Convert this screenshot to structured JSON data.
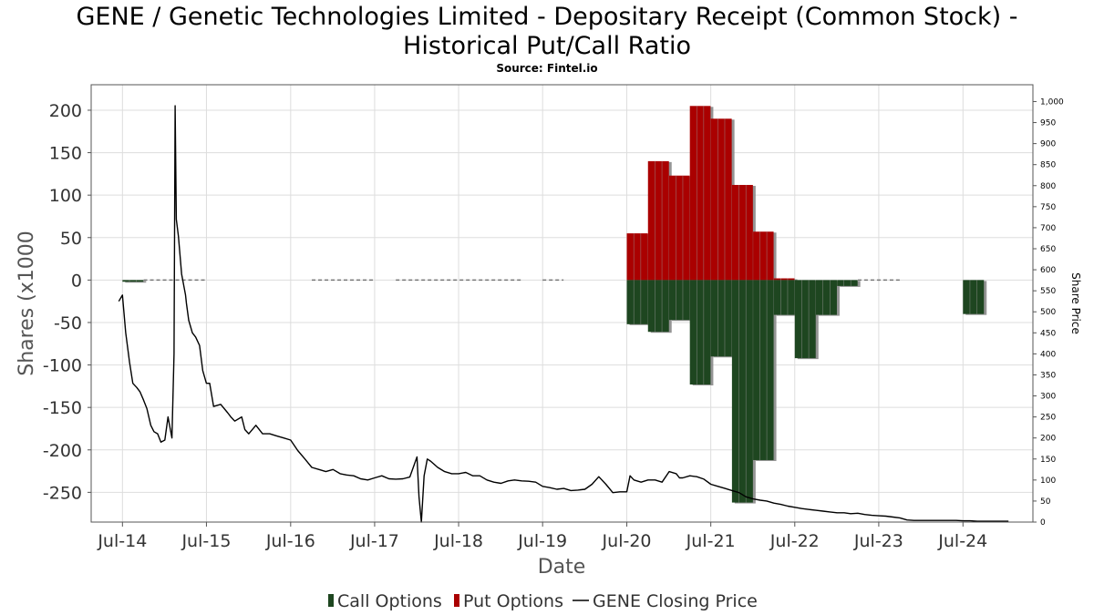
{
  "chart": {
    "title_line1": "GENE / Genetic Technologies Limited - Depositary Receipt (Common Stock) -",
    "title_line2": "Historical Put/Call Ratio",
    "source": "Source: Fintel.io",
    "xlabel": "Date",
    "ylabel_left": "Shares (x1000",
    "ylabel_right": "Share Price"
  },
  "legend": {
    "call": "Call Options",
    "put": "Put Options",
    "price": "GENE Closing Price"
  },
  "colors": {
    "call": "#1e4620",
    "put": "#aa0000",
    "price": "#000000",
    "zero_dash": "#777777",
    "shadow": "#888888"
  },
  "chart_data": {
    "type": "bar",
    "title": "GENE / Genetic Technologies Limited - Depositary Receipt (Common Stock) - Historical Put/Call Ratio",
    "xlabel": "Date",
    "ylabel": "Shares (x1000",
    "y2label": "Share Price",
    "ylim": [
      -285,
      230
    ],
    "y2lim": [
      0,
      1040
    ],
    "y_ticks": [
      -250,
      -200,
      -150,
      -100,
      -50,
      0,
      50,
      100,
      150,
      200
    ],
    "y2_ticks": [
      0,
      50,
      100,
      150,
      200,
      250,
      300,
      350,
      400,
      450,
      500,
      550,
      600,
      650,
      700,
      750,
      800,
      850,
      900,
      950,
      1000
    ],
    "y2_tick_labels": [
      "0",
      "50",
      "100",
      "150",
      "200",
      "250",
      "300",
      "350",
      "400",
      "450",
      "500",
      "550",
      "600",
      "650",
      "700",
      "750",
      "800",
      "850",
      "900",
      "950",
      "1,000"
    ],
    "x_ticks": [
      "2014-07-01",
      "2015-07-01",
      "2016-07-01",
      "2017-07-01",
      "2018-07-01",
      "2019-07-01",
      "2020-07-01",
      "2021-07-01",
      "2022-07-01",
      "2023-07-01",
      "2024-07-01"
    ],
    "x_tick_labels": [
      "Jul-14",
      "Jul-15",
      "Jul-16",
      "Jul-17",
      "Jul-18",
      "Jul-19",
      "Jul-20",
      "Jul-21",
      "Jul-22",
      "Jul-23",
      "Jul-24"
    ],
    "xlim": [
      "2014-02-15",
      "2025-05-01"
    ],
    "grid": true,
    "legend_position": "bottom",
    "series": [
      {
        "name": "Call Options",
        "type": "bar",
        "axis": "left",
        "values": [
          {
            "start": "2014-07-01",
            "end": "2014-09-30",
            "value": -2
          },
          {
            "start": "2020-07-01",
            "end": "2020-09-30",
            "value": -52
          },
          {
            "start": "2020-10-01",
            "end": "2020-12-31",
            "value": -61
          },
          {
            "start": "2021-01-01",
            "end": "2021-03-31",
            "value": -47
          },
          {
            "start": "2021-04-01",
            "end": "2021-06-30",
            "value": -123
          },
          {
            "start": "2021-07-01",
            "end": "2021-09-30",
            "value": -90
          },
          {
            "start": "2021-10-01",
            "end": "2021-12-31",
            "value": -262
          },
          {
            "start": "2022-01-01",
            "end": "2022-03-31",
            "value": -212
          },
          {
            "start": "2022-04-01",
            "end": "2022-06-30",
            "value": -41
          },
          {
            "start": "2022-07-01",
            "end": "2022-09-30",
            "value": -92
          },
          {
            "start": "2022-10-01",
            "end": "2022-12-31",
            "value": -41
          },
          {
            "start": "2023-01-01",
            "end": "2023-03-31",
            "value": -7
          },
          {
            "start": "2024-07-01",
            "end": "2024-09-30",
            "value": -40
          }
        ]
      },
      {
        "name": "Put Options",
        "type": "bar",
        "axis": "left",
        "values": [
          {
            "start": "2020-07-01",
            "end": "2020-09-30",
            "value": 55
          },
          {
            "start": "2020-10-01",
            "end": "2020-12-31",
            "value": 140
          },
          {
            "start": "2021-01-01",
            "end": "2021-03-31",
            "value": 123
          },
          {
            "start": "2021-04-01",
            "end": "2021-06-30",
            "value": 205
          },
          {
            "start": "2021-07-01",
            "end": "2021-09-30",
            "value": 190
          },
          {
            "start": "2021-10-01",
            "end": "2021-12-31",
            "value": 112
          },
          {
            "start": "2022-01-01",
            "end": "2022-03-31",
            "value": 57
          },
          {
            "start": "2022-04-01",
            "end": "2022-06-30",
            "value": 2
          }
        ]
      },
      {
        "name": "Zero-position periods",
        "type": "dashed-zero",
        "axis": "left",
        "values": [
          {
            "start": "2014-10-01",
            "end": "2015-06-30",
            "value": 0
          },
          {
            "start": "2016-10-01",
            "end": "2017-06-30",
            "value": 0
          },
          {
            "start": "2017-10-01",
            "end": "2019-03-31",
            "value": 0
          },
          {
            "start": "2019-07-01",
            "end": "2019-09-30",
            "value": 0
          },
          {
            "start": "2023-04-01",
            "end": "2023-09-30",
            "value": 0
          }
        ]
      },
      {
        "name": "GENE Closing Price",
        "type": "line",
        "axis": "right",
        "x": [
          "2014-06-15",
          "2014-07-01",
          "2014-07-15",
          "2014-08-01",
          "2014-08-15",
          "2014-09-01",
          "2014-09-15",
          "2014-10-01",
          "2014-10-15",
          "2014-11-01",
          "2014-11-15",
          "2014-12-01",
          "2014-12-15",
          "2015-01-01",
          "2015-01-15",
          "2015-02-01",
          "2015-02-10",
          "2015-02-15",
          "2015-02-20",
          "2015-03-01",
          "2015-03-15",
          "2015-04-01",
          "2015-04-05",
          "2015-04-15",
          "2015-05-01",
          "2015-05-15",
          "2015-06-01",
          "2015-06-15",
          "2015-07-01",
          "2015-07-15",
          "2015-08-01",
          "2015-09-01",
          "2015-10-01",
          "2015-10-15",
          "2015-11-01",
          "2015-12-01",
          "2015-12-15",
          "2016-01-01",
          "2016-02-01",
          "2016-03-01",
          "2016-04-01",
          "2016-05-01",
          "2016-06-01",
          "2016-07-01",
          "2016-08-01",
          "2016-09-01",
          "2016-10-01",
          "2016-11-01",
          "2016-12-01",
          "2017-01-01",
          "2017-02-01",
          "2017-03-01",
          "2017-04-01",
          "2017-05-01",
          "2017-06-01",
          "2017-07-01",
          "2017-08-01",
          "2017-09-01",
          "2017-10-01",
          "2017-11-01",
          "2017-12-01",
          "2018-01-01",
          "2018-01-10",
          "2018-01-20",
          "2018-02-01",
          "2018-02-15",
          "2018-03-01",
          "2018-04-01",
          "2018-05-01",
          "2018-06-01",
          "2018-07-01",
          "2018-08-01",
          "2018-09-01",
          "2018-10-01",
          "2018-11-01",
          "2018-12-01",
          "2019-01-01",
          "2019-02-01",
          "2019-03-01",
          "2019-04-01",
          "2019-05-01",
          "2019-06-01",
          "2019-07-01",
          "2019-08-01",
          "2019-09-01",
          "2019-10-01",
          "2019-11-01",
          "2019-12-01",
          "2020-01-01",
          "2020-02-01",
          "2020-03-01",
          "2020-04-01",
          "2020-05-01",
          "2020-06-01",
          "2020-07-01",
          "2020-07-15",
          "2020-08-01",
          "2020-09-01",
          "2020-10-01",
          "2020-11-01",
          "2020-12-01",
          "2021-01-01",
          "2021-02-01",
          "2021-02-15",
          "2021-03-01",
          "2021-04-01",
          "2021-05-01",
          "2021-06-01",
          "2021-07-01",
          "2021-08-01",
          "2021-09-01",
          "2021-10-01",
          "2021-11-01",
          "2021-12-01",
          "2022-01-01",
          "2022-02-01",
          "2022-03-01",
          "2022-04-01",
          "2022-05-01",
          "2022-06-01",
          "2022-07-01",
          "2022-08-01",
          "2022-09-01",
          "2022-10-01",
          "2022-11-01",
          "2022-12-01",
          "2023-01-01",
          "2023-02-01",
          "2023-03-01",
          "2023-04-01",
          "2023-05-01",
          "2023-06-01",
          "2023-07-01",
          "2023-08-01",
          "2023-09-01",
          "2023-10-01",
          "2023-11-01",
          "2023-12-01",
          "2024-01-01",
          "2024-02-01",
          "2024-03-01",
          "2024-04-01",
          "2024-05-01",
          "2024-06-01",
          "2024-07-01",
          "2024-08-01",
          "2024-09-01",
          "2024-10-01",
          "2024-11-01",
          "2024-12-01",
          "2025-01-15"
        ],
        "y": [
          525,
          540,
          450,
          380,
          330,
          320,
          310,
          290,
          270,
          230,
          215,
          210,
          190,
          195,
          250,
          200,
          400,
          990,
          720,
          680,
          590,
          540,
          520,
          480,
          450,
          440,
          420,
          360,
          330,
          330,
          275,
          280,
          260,
          250,
          240,
          250,
          220,
          210,
          230,
          210,
          210,
          205,
          200,
          195,
          170,
          150,
          130,
          125,
          120,
          125,
          115,
          112,
          110,
          103,
          100,
          105,
          110,
          103,
          102,
          103,
          107,
          155,
          60,
          0,
          110,
          150,
          145,
          130,
          120,
          115,
          115,
          118,
          110,
          110,
          100,
          95,
          92,
          98,
          100,
          98,
          97,
          95,
          85,
          82,
          78,
          80,
          75,
          76,
          78,
          90,
          108,
          90,
          70,
          72,
          72,
          110,
          100,
          95,
          100,
          100,
          95,
          120,
          115,
          105,
          105,
          110,
          108,
          102,
          90,
          85,
          80,
          75,
          70,
          60,
          55,
          52,
          50,
          45,
          42,
          38,
          35,
          32,
          30,
          28,
          26,
          24,
          22,
          22,
          20,
          21,
          18,
          16,
          15,
          14,
          12,
          10,
          5,
          4,
          4,
          4,
          4,
          4,
          4,
          4,
          3,
          3,
          2,
          2,
          2,
          2,
          2
        ]
      }
    ]
  }
}
